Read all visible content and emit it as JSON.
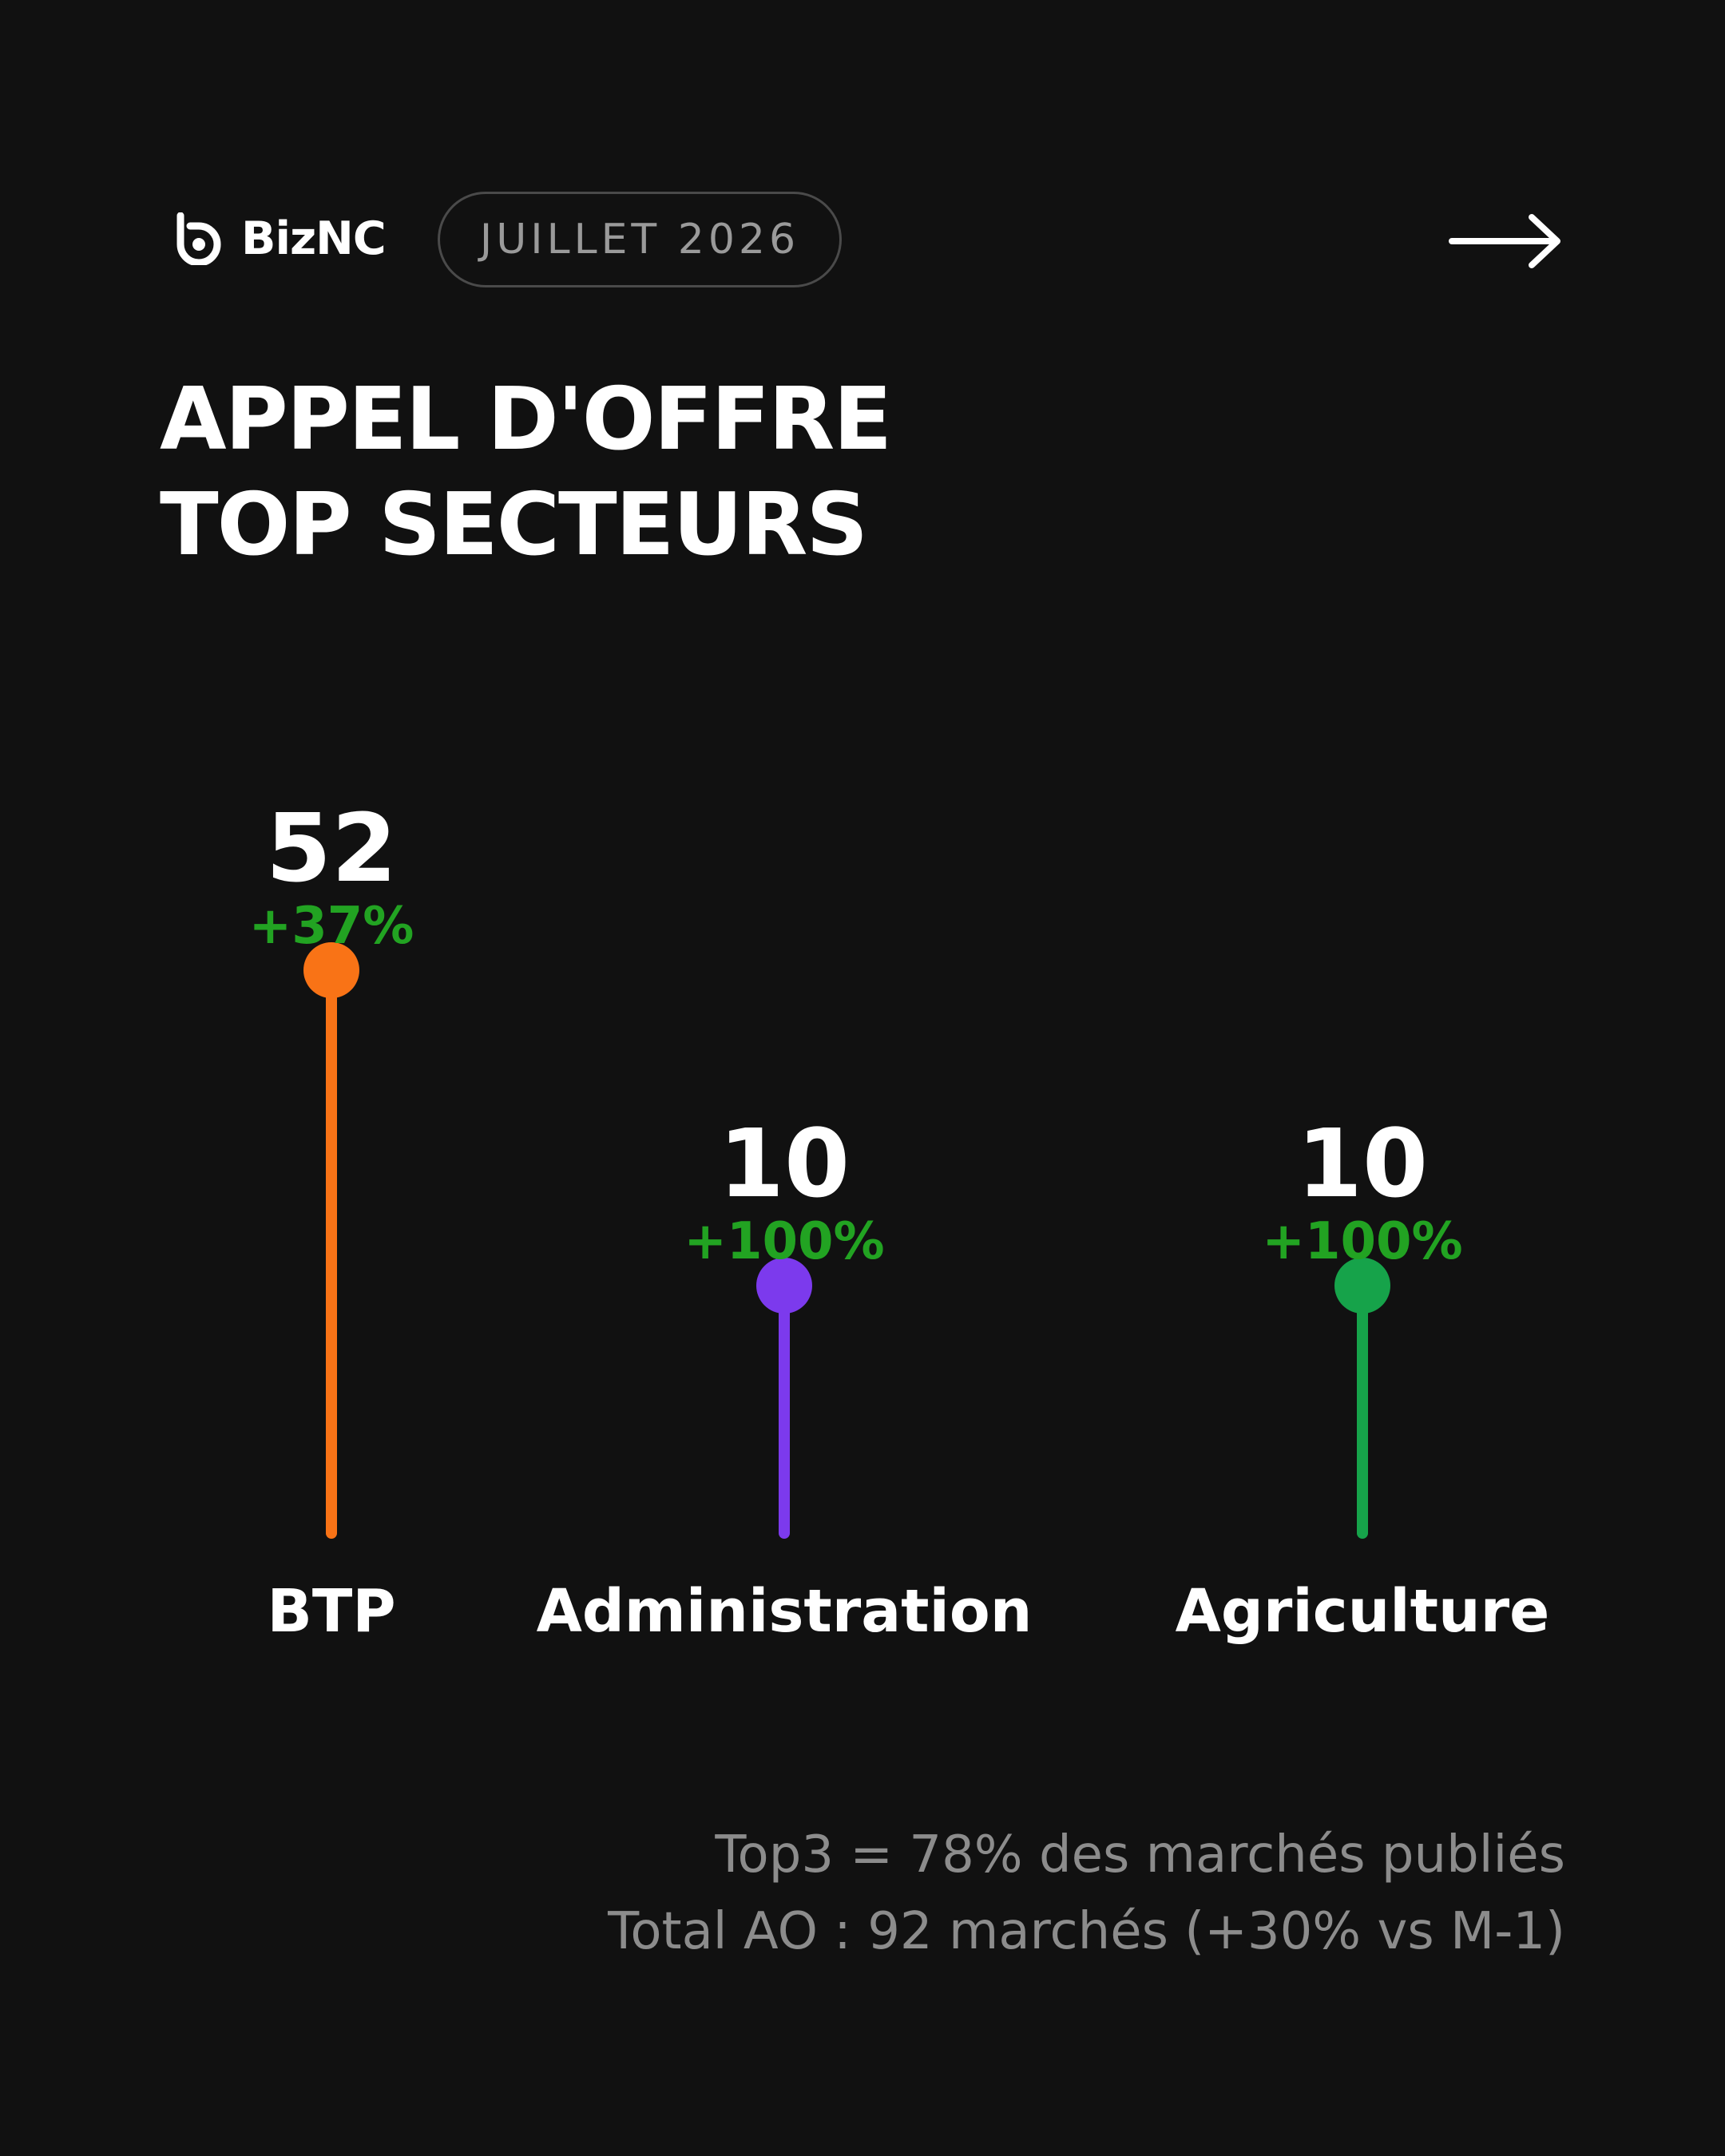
{
  "brand": {
    "name": "BizNC",
    "logo_icon": "b-logo-icon"
  },
  "period": "JUILLET 2026",
  "nav": {
    "next_icon": "arrow-right-icon"
  },
  "title": {
    "line1": "APPEL D'OFFRE",
    "line2": "TOP SECTEURS"
  },
  "chart_data": {
    "type": "lollipop",
    "title": "APPEL D'OFFRE TOP SECTEURS",
    "categories": [
      "BTP",
      "Administration",
      "Agriculture"
    ],
    "values": [
      52,
      10,
      10
    ],
    "value_labels": [
      "52",
      "10",
      "10"
    ],
    "changes": [
      "+37%",
      "+100%",
      "+100%"
    ],
    "colors": [
      "#f97316",
      "#7c3aed",
      "#16a34a"
    ],
    "change_color": "#22a322",
    "grid": false,
    "legend": false
  },
  "footer": {
    "line1": "Top3 = 78% des marchés publiés",
    "line2": "Total AO : 92 marchés (+30% vs M-1)"
  }
}
